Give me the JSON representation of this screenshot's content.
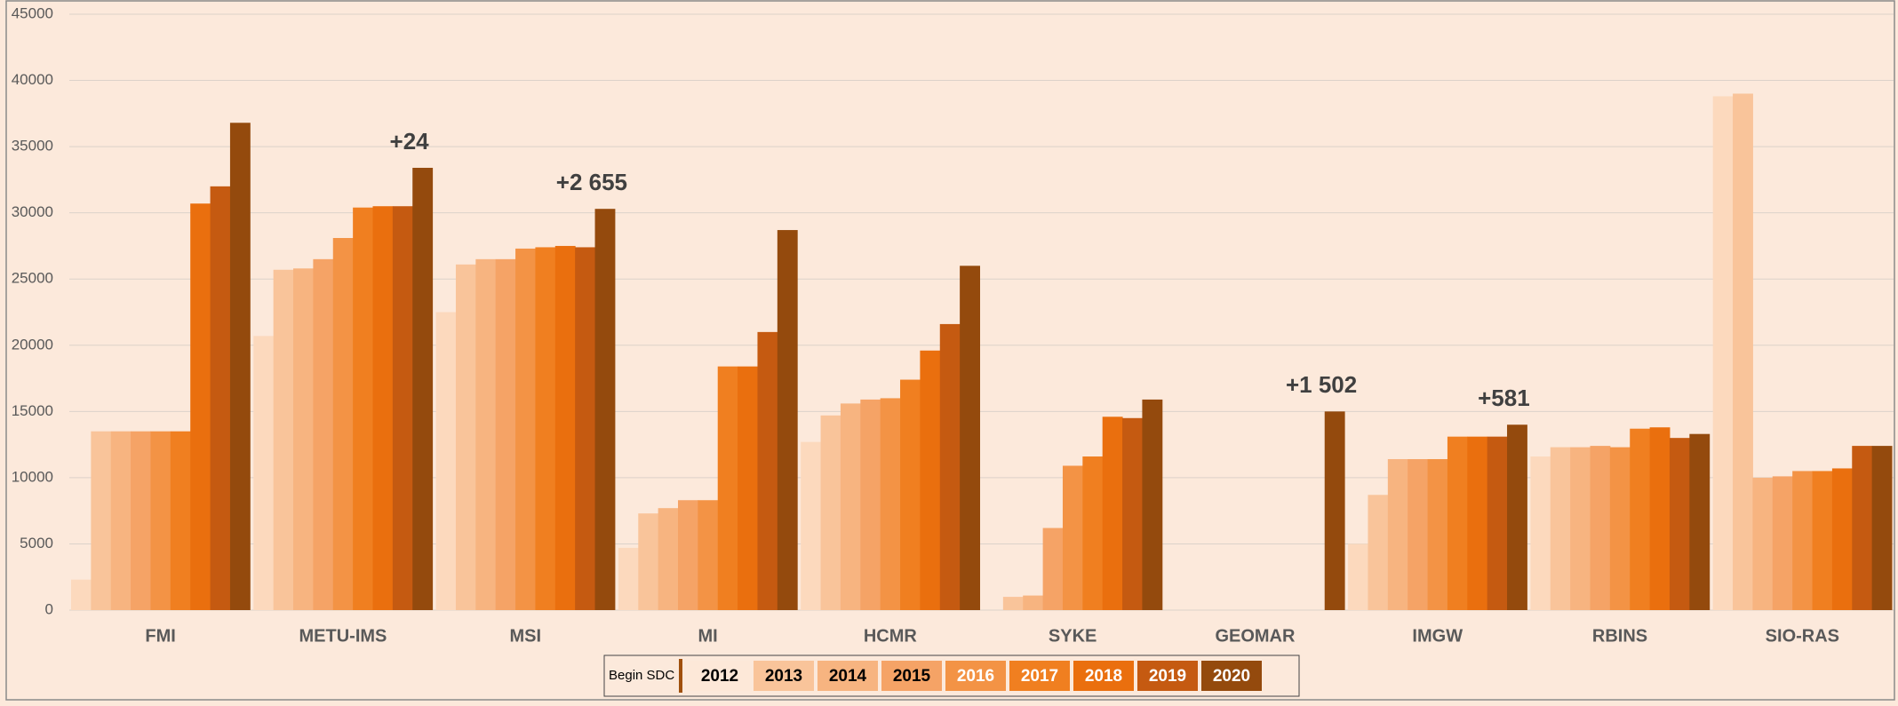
{
  "chart_data": {
    "type": "bar",
    "categories": [
      "FMI",
      "METU-IMS",
      "MSI",
      "MI",
      "HCMR",
      "SYKE",
      "GEOMAR",
      "IMGW",
      "RBINS",
      "SIO-RAS"
    ],
    "series": [
      {
        "name": "2012",
        "color": "#fcd9bd",
        "values": [
          2300,
          20700,
          22500,
          4700,
          12700,
          null,
          null,
          5000,
          11600,
          38800
        ]
      },
      {
        "name": "2013",
        "color": "#f9c49a",
        "values": [
          13500,
          25700,
          26100,
          7300,
          14700,
          1000,
          null,
          8700,
          12300,
          39000
        ]
      },
      {
        "name": "2014",
        "color": "#f7b480",
        "values": [
          13500,
          25800,
          26500,
          7700,
          15600,
          1100,
          null,
          11400,
          12300,
          10000
        ]
      },
      {
        "name": "2015",
        "color": "#f5a366",
        "values": [
          13500,
          26500,
          26500,
          8300,
          15900,
          6200,
          null,
          11400,
          12400,
          10100
        ]
      },
      {
        "name": "2016",
        "color": "#f39345",
        "values": [
          13500,
          28100,
          27300,
          8300,
          16000,
          10900,
          null,
          11400,
          12300,
          10500
        ]
      },
      {
        "name": "2017",
        "color": "#f07f20",
        "values": [
          13500,
          30400,
          27400,
          18400,
          17400,
          11600,
          null,
          13100,
          13700,
          10500
        ]
      },
      {
        "name": "2018",
        "color": "#ea6f0e",
        "values": [
          30700,
          30500,
          27500,
          18400,
          19600,
          14600,
          null,
          13100,
          13800,
          10700
        ]
      },
      {
        "name": "2019",
        "color": "#c55a11",
        "values": [
          32000,
          30500,
          27400,
          21000,
          21600,
          14500,
          null,
          13100,
          13000,
          12400
        ]
      },
      {
        "name": "2020",
        "color": "#944a0d",
        "values": [
          36800,
          33400,
          30300,
          28700,
          26000,
          15900,
          15000,
          14000,
          13300,
          12400
        ]
      }
    ],
    "legend_marker": {
      "name": "Begin SDC",
      "color": "#a0500e"
    },
    "annotations": [
      {
        "text": "+24",
        "category": "METU-IMS"
      },
      {
        "text": "+2 655",
        "category": "MSI"
      },
      {
        "text": "+1 502",
        "category": "GEOMAR"
      },
      {
        "text": "+581",
        "category": "IMGW"
      }
    ],
    "ylim": [
      0,
      45000
    ],
    "yticks": [
      0,
      5000,
      10000,
      15000,
      20000,
      25000,
      30000,
      35000,
      40000,
      45000
    ],
    "grid": true
  }
}
